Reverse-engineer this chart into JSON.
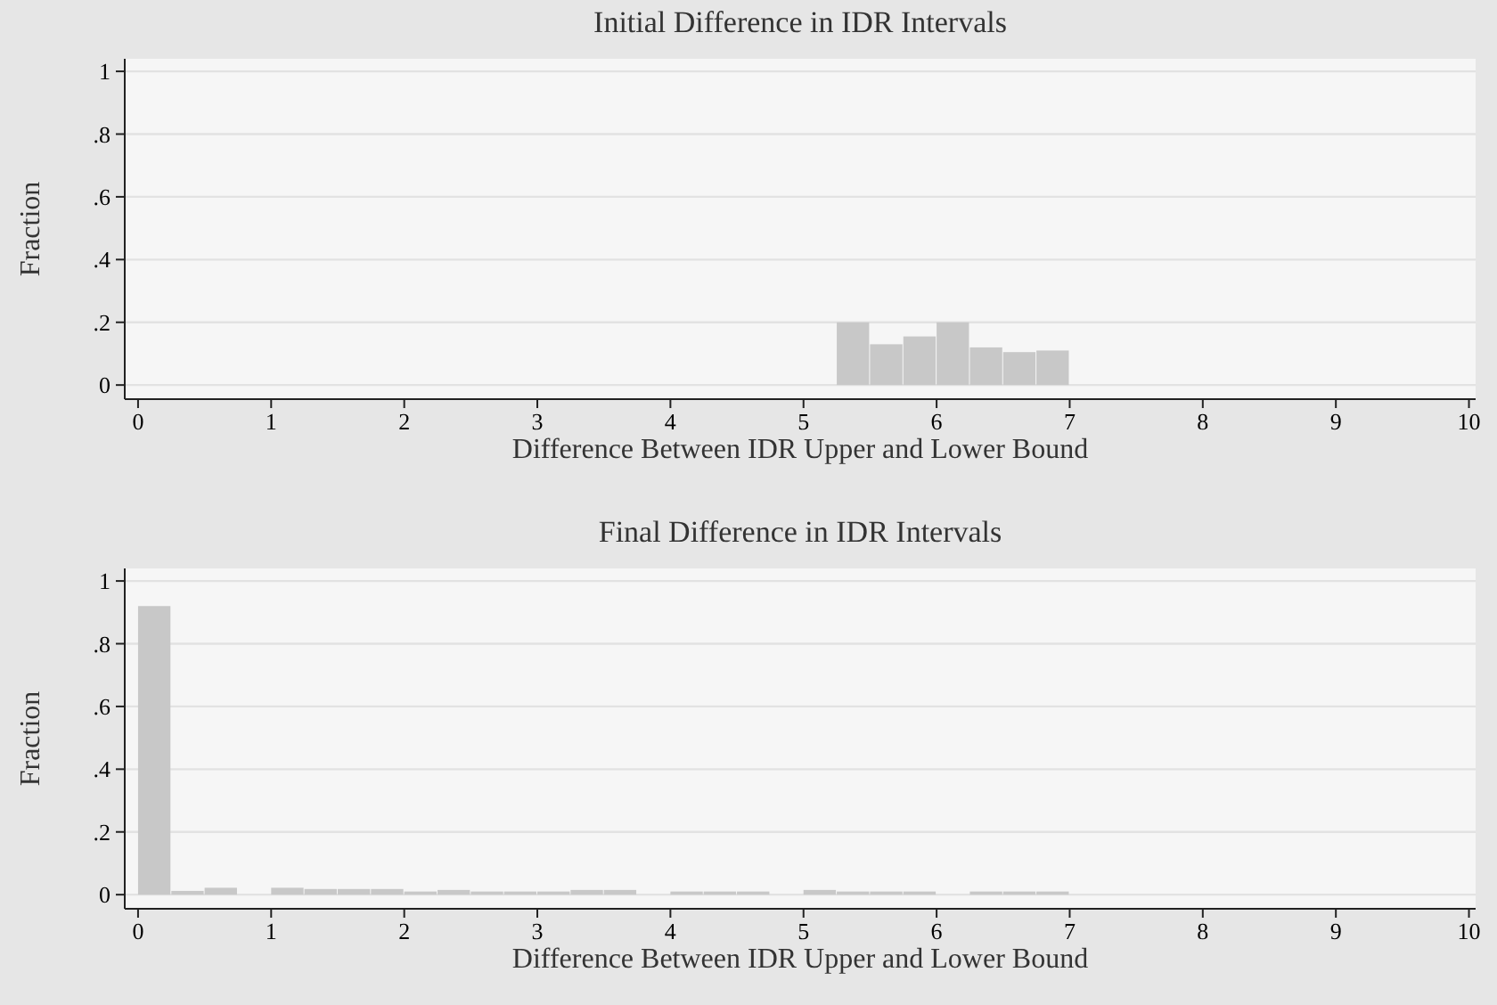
{
  "chart_data": [
    {
      "type": "histogram",
      "title": "Initial Difference in IDR Intervals",
      "xlabel": "Difference Between IDR Upper and Lower Bound",
      "ylabel": "Fraction",
      "color": "#c8c8c8",
      "bins": [
        5.25,
        5.5,
        5.75,
        6,
        6.25,
        6.5,
        6.75,
        7
      ],
      "values": [
        0.2,
        0.13,
        0.155,
        0.2,
        0.12,
        0.105,
        0.11
      ],
      "xlim": [
        -0.1,
        10.05
      ],
      "xticks": [
        0,
        1,
        2,
        3,
        4,
        5,
        6,
        7,
        8,
        9,
        10
      ],
      "ylim": [
        -0.045,
        1.04
      ],
      "yticks": [
        {
          "value": 0,
          "label": "0"
        },
        {
          "value": 0.2,
          "label": ".2"
        },
        {
          "value": 0.4,
          "label": ".4"
        },
        {
          "value": 0.6,
          "label": ".6"
        },
        {
          "value": 0.8,
          "label": ".8"
        },
        {
          "value": 1,
          "label": "1"
        }
      ],
      "grid": "y"
    },
    {
      "type": "histogram",
      "title": "Final Difference in IDR Intervals",
      "xlabel": "Difference Between IDR Upper and Lower Bound",
      "ylabel": "Fraction",
      "color": "#c8c8c8",
      "bins": [
        0,
        0.25,
        0.5,
        0.75,
        1,
        1.25,
        1.5,
        1.75,
        2,
        2.25,
        2.5,
        2.75,
        3,
        3.25,
        3.5,
        3.75,
        4,
        4.25,
        4.5,
        4.75,
        5,
        5.25,
        5.5,
        5.75,
        6,
        6.25,
        6.5,
        6.75,
        7
      ],
      "values": [
        0.92,
        0.012,
        0.022,
        0,
        0.022,
        0.018,
        0.018,
        0.018,
        0.01,
        0.015,
        0.01,
        0.01,
        0.01,
        0.015,
        0.015,
        0,
        0.01,
        0.01,
        0.01,
        0,
        0.015,
        0.01,
        0.01,
        0.01,
        0,
        0.01,
        0.01,
        0.01
      ],
      "xlim": [
        -0.1,
        10.05
      ],
      "xticks": [
        0,
        1,
        2,
        3,
        4,
        5,
        6,
        7,
        8,
        9,
        10
      ],
      "ylim": [
        -0.045,
        1.04
      ],
      "yticks": [
        {
          "value": 0,
          "label": "0"
        },
        {
          "value": 0.2,
          "label": ".2"
        },
        {
          "value": 0.4,
          "label": ".4"
        },
        {
          "value": 0.6,
          "label": ".6"
        },
        {
          "value": 0.8,
          "label": ".8"
        },
        {
          "value": 1,
          "label": "1"
        }
      ],
      "grid": "y"
    }
  ]
}
